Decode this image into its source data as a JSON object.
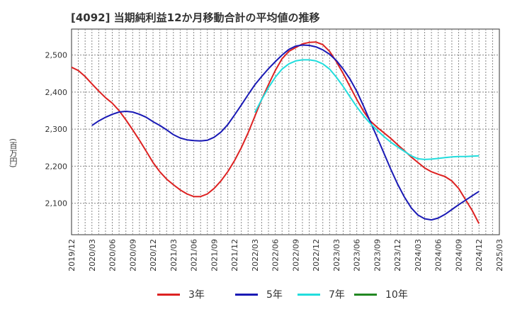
{
  "chart_data": {
    "type": "line",
    "title": "[4092]  当期純利益12か月移動合計の平均値の推移",
    "ylabel": "(百万円)",
    "ylim": [
      2015,
      2570
    ],
    "yticks": [
      2100,
      2200,
      2300,
      2400,
      2500
    ],
    "ytick_labels": [
      "2,100",
      "2,200",
      "2,300",
      "2,400",
      "2,500"
    ],
    "xlim": [
      "2019-12",
      "2025-03"
    ],
    "xtick_labels": [
      "2019/12",
      "2020/03",
      "2020/06",
      "2020/09",
      "2020/12",
      "2021/03",
      "2021/06",
      "2021/09",
      "2021/12",
      "2022/03",
      "2022/06",
      "2022/09",
      "2022/12",
      "2023/03",
      "2023/06",
      "2023/09",
      "2023/12",
      "2024/03",
      "2024/06",
      "2024/09",
      "2024/12",
      "2025/03"
    ],
    "grid": true,
    "legend_position": "bottom",
    "series": [
      {
        "name": "3年",
        "color": "#dd2222",
        "x": [
          "2019-12",
          "2020-01",
          "2020-02",
          "2020-03",
          "2020-04",
          "2020-05",
          "2020-06",
          "2020-07",
          "2020-08",
          "2020-09",
          "2020-10",
          "2020-11",
          "2020-12",
          "2021-01",
          "2021-02",
          "2021-03",
          "2021-04",
          "2021-05",
          "2021-06",
          "2021-07",
          "2021-08",
          "2021-09",
          "2021-10",
          "2021-11",
          "2021-12",
          "2022-01",
          "2022-02",
          "2022-03",
          "2022-04",
          "2022-05",
          "2022-06",
          "2022-07",
          "2022-08",
          "2022-09",
          "2022-10",
          "2022-11",
          "2022-12",
          "2023-01",
          "2023-02",
          "2023-03",
          "2023-04",
          "2023-05",
          "2023-06",
          "2023-07",
          "2023-08",
          "2023-09",
          "2023-10",
          "2023-11",
          "2023-12",
          "2024-01",
          "2024-02",
          "2024-03",
          "2024-04",
          "2024-05",
          "2024-06",
          "2024-07",
          "2024-08",
          "2024-09",
          "2024-10",
          "2024-11",
          "2024-12"
        ],
        "values": [
          2467,
          2458,
          2442,
          2422,
          2403,
          2385,
          2370,
          2350,
          2325,
          2298,
          2270,
          2240,
          2210,
          2185,
          2165,
          2150,
          2136,
          2125,
          2118,
          2118,
          2125,
          2140,
          2160,
          2185,
          2215,
          2250,
          2290,
          2335,
          2380,
          2420,
          2458,
          2490,
          2510,
          2520,
          2530,
          2534,
          2535,
          2528,
          2510,
          2482,
          2450,
          2415,
          2380,
          2348,
          2322,
          2305,
          2290,
          2275,
          2258,
          2242,
          2225,
          2210,
          2195,
          2185,
          2178,
          2172,
          2160,
          2140,
          2110,
          2080,
          2045
        ]
      },
      {
        "name": "5年",
        "color": "#1a1ab5",
        "x": [
          "2020-03",
          "2020-04",
          "2020-05",
          "2020-06",
          "2020-07",
          "2020-08",
          "2020-09",
          "2020-10",
          "2020-11",
          "2020-12",
          "2021-01",
          "2021-02",
          "2021-03",
          "2021-04",
          "2021-05",
          "2021-06",
          "2021-07",
          "2021-08",
          "2021-09",
          "2021-10",
          "2021-11",
          "2021-12",
          "2022-01",
          "2022-02",
          "2022-03",
          "2022-04",
          "2022-05",
          "2022-06",
          "2022-07",
          "2022-08",
          "2022-09",
          "2022-10",
          "2022-11",
          "2022-12",
          "2023-01",
          "2023-02",
          "2023-03",
          "2023-04",
          "2023-05",
          "2023-06",
          "2023-07",
          "2023-08",
          "2023-09",
          "2023-10",
          "2023-11",
          "2023-12",
          "2024-01",
          "2024-02",
          "2024-03",
          "2024-04",
          "2024-05",
          "2024-06",
          "2024-07",
          "2024-08",
          "2024-09",
          "2024-10",
          "2024-11",
          "2024-12"
        ],
        "values": [
          2310,
          2322,
          2332,
          2340,
          2346,
          2348,
          2346,
          2340,
          2332,
          2320,
          2310,
          2298,
          2285,
          2276,
          2271,
          2269,
          2268,
          2270,
          2278,
          2292,
          2312,
          2338,
          2365,
          2393,
          2420,
          2442,
          2463,
          2482,
          2500,
          2515,
          2524,
          2527,
          2526,
          2522,
          2514,
          2502,
          2485,
          2462,
          2435,
          2402,
          2362,
          2320,
          2278,
          2235,
          2192,
          2152,
          2117,
          2088,
          2068,
          2058,
          2055,
          2060,
          2070,
          2083,
          2096,
          2108,
          2120,
          2132
        ]
      },
      {
        "name": "7年",
        "color": "#22dddd",
        "x": [
          "2022-03",
          "2022-04",
          "2022-05",
          "2022-06",
          "2022-07",
          "2022-08",
          "2022-09",
          "2022-10",
          "2022-11",
          "2022-12",
          "2023-01",
          "2023-02",
          "2023-03",
          "2023-04",
          "2023-05",
          "2023-06",
          "2023-07",
          "2023-08",
          "2023-09",
          "2023-10",
          "2023-11",
          "2023-12",
          "2024-01",
          "2024-02",
          "2024-03",
          "2024-04",
          "2024-05",
          "2024-06",
          "2024-07",
          "2024-08",
          "2024-09",
          "2024-10",
          "2024-11",
          "2024-12"
        ],
        "values": [
          2345,
          2380,
          2412,
          2440,
          2462,
          2476,
          2484,
          2487,
          2487,
          2484,
          2476,
          2462,
          2440,
          2415,
          2387,
          2360,
          2336,
          2315,
          2297,
          2280,
          2265,
          2252,
          2240,
          2228,
          2220,
          2218,
          2219,
          2221,
          2223,
          2225,
          2226,
          2226,
          2227,
          2228
        ]
      },
      {
        "name": "10年",
        "color": "#228822",
        "x": [],
        "values": []
      }
    ]
  }
}
